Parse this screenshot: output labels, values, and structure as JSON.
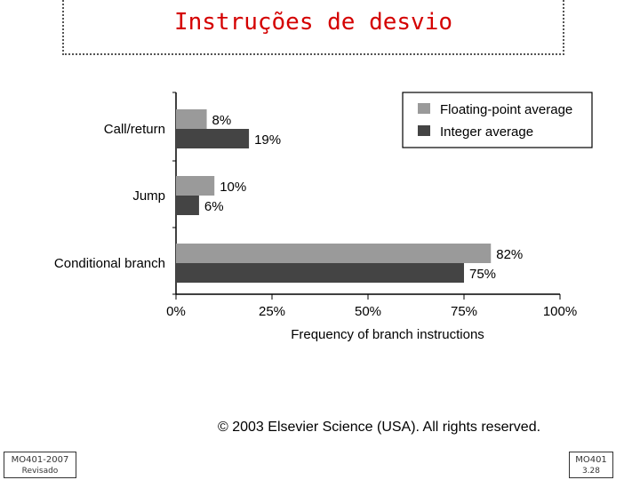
{
  "slide": {
    "title": "Instruções de desvio",
    "copyright": "© 2003 Elsevier Science (USA). All rights reserved.",
    "footer_left": {
      "line1": "MO401-2007",
      "line2": "Revisado"
    },
    "footer_right": {
      "line1": "MO401",
      "line2": "3.28"
    }
  },
  "chart_data": {
    "type": "bar",
    "orientation": "horizontal",
    "categories": [
      "Call/return",
      "Jump",
      "Conditional branch"
    ],
    "series": [
      {
        "name": "Floating-point average",
        "values": [
          8,
          10,
          82
        ],
        "labels": [
          "8%",
          "10%",
          "82%"
        ],
        "color": "#9a9a9a"
      },
      {
        "name": "Integer average",
        "values": [
          19,
          6,
          75
        ],
        "labels": [
          "19%",
          "6%",
          "75%"
        ],
        "color": "#444444"
      }
    ],
    "xlabel": "Frequency of branch instructions",
    "ylabel": "",
    "xlim": [
      0,
      100
    ],
    "xticks": [
      "0%",
      "25%",
      "50%",
      "75%",
      "100%"
    ],
    "legend_position": "top-right",
    "grid": false
  }
}
